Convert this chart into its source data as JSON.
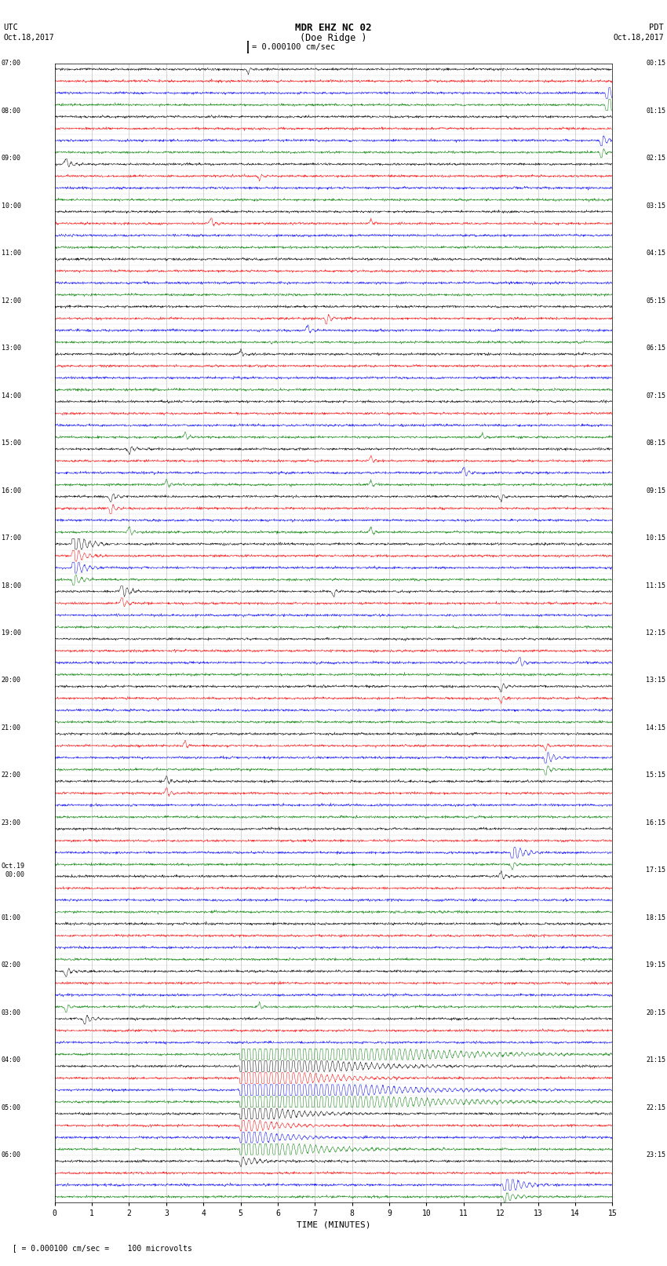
{
  "title_line1": "MDR EHZ NC 02",
  "title_line2": "(Doe Ridge )",
  "scale_text": "= 0.000100 cm/sec",
  "xlabel": "TIME (MINUTES)",
  "utc_times": [
    "07:00",
    "08:00",
    "09:00",
    "10:00",
    "11:00",
    "12:00",
    "13:00",
    "14:00",
    "15:00",
    "16:00",
    "17:00",
    "18:00",
    "19:00",
    "20:00",
    "21:00",
    "22:00",
    "23:00",
    "Oct.19\n00:00",
    "01:00",
    "02:00",
    "03:00",
    "04:00",
    "05:00",
    "06:00"
  ],
  "pdt_times": [
    "00:15",
    "01:15",
    "02:15",
    "03:15",
    "04:15",
    "05:15",
    "06:15",
    "07:15",
    "08:15",
    "09:15",
    "10:15",
    "11:15",
    "12:15",
    "13:15",
    "14:15",
    "15:15",
    "16:15",
    "17:15",
    "18:15",
    "19:15",
    "20:15",
    "21:15",
    "22:15",
    "23:15"
  ],
  "colors": [
    "black",
    "red",
    "blue",
    "green"
  ],
  "num_rows": 96,
  "minutes": 15,
  "bg_color": "white",
  "grid_color": "#aaaaaa",
  "bottom_note": "= 0.000100 cm/sec =    100 microvolts"
}
